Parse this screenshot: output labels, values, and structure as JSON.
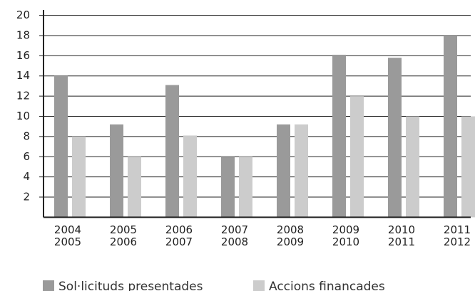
{
  "chart_data": {
    "type": "bar",
    "categories": [
      "2004\n2005",
      "2005\n2006",
      "2006\n2007",
      "2007\n2008",
      "2008\n2009",
      "2009\n2010",
      "2010\n2011",
      "2011\n2012"
    ],
    "series": [
      {
        "name": "Sol·licituds presentades",
        "color": "#9a9a9a",
        "values": [
          14,
          9.2,
          13.1,
          6,
          9.2,
          16.1,
          15.8,
          18
        ]
      },
      {
        "name": "Accions financades",
        "color": "#cccccc",
        "values": [
          8,
          6,
          8.1,
          6,
          9.2,
          12,
          10,
          10
        ]
      }
    ],
    "ylim": [
      0,
      20
    ],
    "yticks": [
      2,
      4,
      6,
      8,
      10,
      12,
      14,
      16,
      18,
      20
    ],
    "grid": true
  }
}
